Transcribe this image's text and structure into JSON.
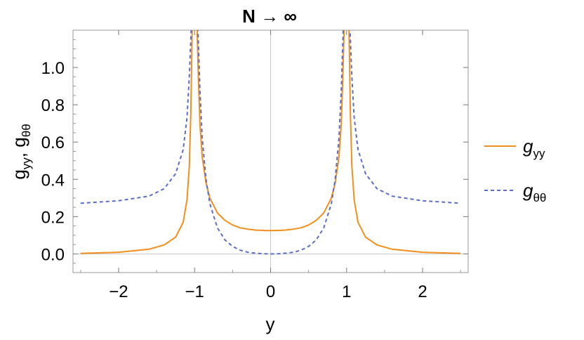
{
  "chart_data": {
    "type": "line",
    "title": "N → ∞",
    "xlabel": "y",
    "ylabel_main": "g",
    "ylabel_sub1": "yy",
    "ylabel_sep": ", ",
    "ylabel_sub2": "θθ",
    "xlim": [
      -2.6,
      2.6
    ],
    "ylim": [
      -0.1,
      1.2
    ],
    "xticks": [
      -2,
      -1,
      0,
      1,
      2
    ],
    "xtick_labels": [
      "−2",
      "−1",
      "0",
      "1",
      "2"
    ],
    "yticks": [
      0.0,
      0.2,
      0.4,
      0.6,
      0.8,
      1.0
    ],
    "ytick_labels": [
      "0.0",
      "0.2",
      "0.4",
      "0.6",
      "0.8",
      "1.0"
    ],
    "grid": false,
    "legend_position": "right",
    "series": [
      {
        "name": "g_yy",
        "legend_main": "g",
        "legend_sub": "yy",
        "color": "#f28e1c",
        "style": "solid",
        "x": [
          -2.5,
          -2.0,
          -1.6,
          -1.4,
          -1.25,
          -1.15,
          -1.1,
          -1.07,
          -1.05,
          -1.03,
          -0.97,
          -0.95,
          -0.93,
          -0.9,
          -0.85,
          -0.8,
          -0.7,
          -0.6,
          -0.5,
          -0.4,
          -0.3,
          -0.2,
          -0.1,
          0.0,
          0.1,
          0.2,
          0.3,
          0.4,
          0.5,
          0.6,
          0.7,
          0.8,
          0.85,
          0.9,
          0.93,
          0.95,
          0.97,
          1.03,
          1.05,
          1.07,
          1.1,
          1.15,
          1.25,
          1.4,
          1.6,
          2.0,
          2.5
        ],
        "y": [
          0.003,
          0.009,
          0.025,
          0.048,
          0.09,
          0.17,
          0.29,
          0.47,
          0.75,
          1.25,
          1.25,
          0.95,
          0.7,
          0.52,
          0.38,
          0.3,
          0.22,
          0.18,
          0.155,
          0.14,
          0.133,
          0.128,
          0.126,
          0.125,
          0.126,
          0.128,
          0.133,
          0.14,
          0.155,
          0.18,
          0.22,
          0.3,
          0.38,
          0.52,
          0.7,
          0.95,
          1.25,
          1.25,
          0.75,
          0.47,
          0.29,
          0.17,
          0.09,
          0.048,
          0.025,
          0.009,
          0.003
        ]
      },
      {
        "name": "g_θθ",
        "legend_main": "g",
        "legend_sub": "θθ",
        "color": "#5b6dc8",
        "style": "dashed",
        "x": [
          -2.5,
          -2.0,
          -1.6,
          -1.4,
          -1.25,
          -1.15,
          -1.1,
          -1.07,
          -1.04,
          -0.96,
          -0.93,
          -0.9,
          -0.85,
          -0.8,
          -0.7,
          -0.6,
          -0.5,
          -0.4,
          -0.3,
          -0.2,
          -0.1,
          0.0,
          0.1,
          0.2,
          0.3,
          0.4,
          0.5,
          0.6,
          0.7,
          0.8,
          0.85,
          0.9,
          0.93,
          0.96,
          1.04,
          1.07,
          1.1,
          1.15,
          1.25,
          1.4,
          1.6,
          2.0,
          2.5
        ],
        "y": [
          0.272,
          0.285,
          0.31,
          0.35,
          0.43,
          0.56,
          0.73,
          0.95,
          1.25,
          1.25,
          0.88,
          0.62,
          0.4,
          0.27,
          0.14,
          0.075,
          0.04,
          0.02,
          0.009,
          0.004,
          0.001,
          0.0,
          0.001,
          0.004,
          0.009,
          0.02,
          0.04,
          0.075,
          0.14,
          0.27,
          0.4,
          0.62,
          0.88,
          1.25,
          1.25,
          0.95,
          0.73,
          0.56,
          0.43,
          0.35,
          0.31,
          0.285,
          0.272
        ]
      }
    ]
  }
}
